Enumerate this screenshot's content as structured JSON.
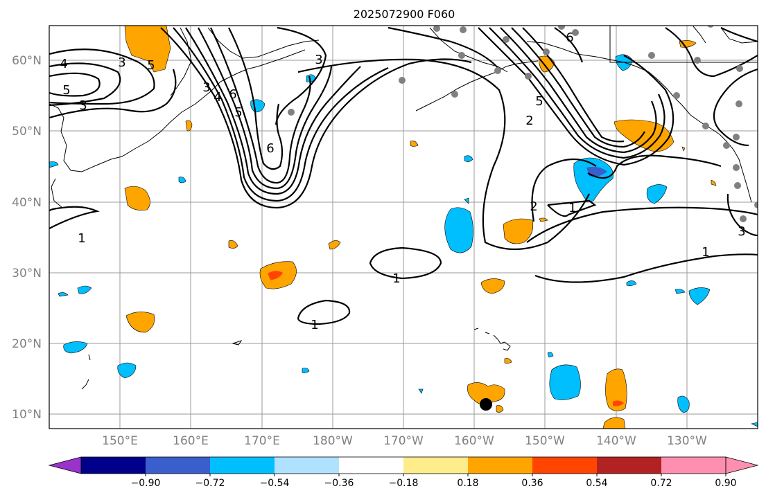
{
  "title": "2025072900 F060",
  "map": {
    "lat_labels": [
      "60°N",
      "50°N",
      "40°N",
      "30°N",
      "20°N",
      "10°N"
    ],
    "lon_labels": [
      "150°E",
      "160°E",
      "170°E",
      "180°W",
      "170°W",
      "160°W",
      "150°W",
      "140°W",
      "130°W"
    ]
  },
  "contour_labels": [
    "5",
    "4",
    "3",
    "5",
    "3",
    "6",
    "4",
    "5",
    "6",
    "3",
    "3",
    "5",
    "2",
    "2",
    "1",
    "1",
    "1",
    "1",
    "1",
    "3",
    "6"
  ],
  "colorbar": {
    "ticks": [
      "−0.90",
      "−0.72",
      "−0.54",
      "−0.36",
      "−0.18",
      "0.18",
      "0.36",
      "0.54",
      "0.72",
      "0.90"
    ],
    "colors": {
      "under": "#9933cc",
      "bins": [
        "#00008b",
        "#3a5fcd",
        "#00bfff",
        "#b0e2ff",
        "#ffffff",
        "#ffec8b",
        "#ffa500",
        "#ff4500",
        "#b22222",
        "#ff8fb0"
      ],
      "over": "#ff8fb0"
    }
  },
  "chart_data": {
    "type": "heatmap",
    "title": "2025072900 F060",
    "lat_range": [
      8,
      65
    ],
    "lon_range_east": [
      140,
      240
    ],
    "color_levels": [
      -0.9,
      -0.72,
      -0.54,
      -0.36,
      -0.18,
      0.18,
      0.36,
      0.54,
      0.72,
      0.9
    ],
    "contour_levels": [
      1,
      2,
      3,
      4,
      5,
      6
    ],
    "legend_placement": "bottom"
  },
  "markers": {
    "station_color": "#808080",
    "storm_color": "#000000"
  }
}
